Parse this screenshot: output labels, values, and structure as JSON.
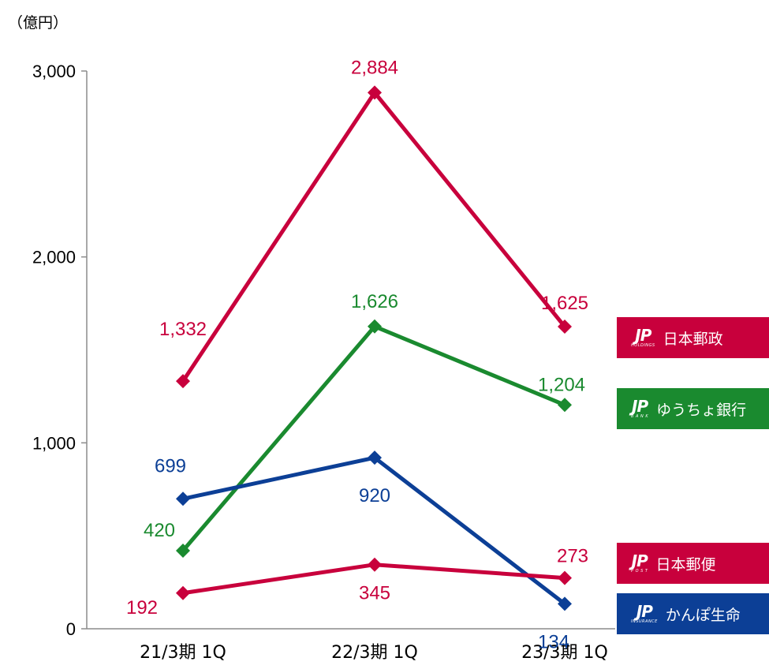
{
  "unit_label": "（億円）",
  "chart_data": {
    "type": "line",
    "categories": [
      "21/3期 1Q",
      "22/3期 1Q",
      "23/3期 1Q"
    ],
    "ylim": [
      0,
      3000
    ],
    "yticks": [
      "0",
      "1,000",
      "2,000",
      "3,000"
    ],
    "ytick_values": [
      0,
      1000,
      2000,
      3000
    ],
    "grid": false,
    "series": [
      {
        "name": "日本郵政",
        "color": "#c8003c",
        "values": [
          1332,
          2884,
          1625
        ],
        "labels": [
          "1,332",
          "2,884",
          "1,625"
        ]
      },
      {
        "name": "ゆうちょ銀行",
        "color": "#1a8a2f",
        "values": [
          420,
          1626,
          1204
        ],
        "labels": [
          "420",
          "1,626",
          "1,204"
        ]
      },
      {
        "name": "かんぽ生命",
        "color": "#0c3f96",
        "values": [
          699,
          920,
          134
        ],
        "labels": [
          "699",
          "920",
          "134"
        ]
      },
      {
        "name": "日本郵便",
        "color": "#c8003c",
        "values": [
          192,
          345,
          273
        ],
        "labels": [
          "192",
          "345",
          "273"
        ]
      }
    ]
  },
  "legend": [
    {
      "name": "日本郵政",
      "logo_mark": "JP",
      "logo_sub": "HOLDINGS",
      "color": "#c8003c"
    },
    {
      "name": "ゆうちょ銀行",
      "logo_mark": "JP",
      "logo_sub": "B A N K",
      "color": "#1a8a2f"
    },
    {
      "name": "日本郵便",
      "logo_mark": "JP",
      "logo_sub": "P O S T",
      "color": "#c8003c"
    },
    {
      "name": "かんぽ生命",
      "logo_mark": "JP",
      "logo_sub": "INSURANCE",
      "color": "#0c3f96"
    }
  ]
}
